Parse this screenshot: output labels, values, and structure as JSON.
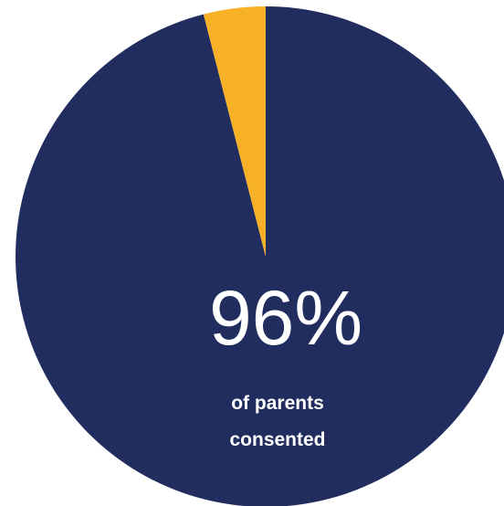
{
  "chart_data": {
    "type": "pie",
    "series": [
      {
        "label": "",
        "value": 96,
        "color": "#222d5f"
      },
      {
        "label": "",
        "value": 4,
        "color": "#f6b127"
      }
    ],
    "data_label": "96%",
    "caption_lines": [
      "of parents",
      "consented"
    ]
  }
}
